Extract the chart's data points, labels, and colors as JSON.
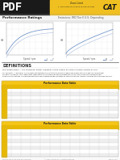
{
  "header_black_color": "#1a1a1a",
  "header_yellow_color": "#f0c020",
  "background_color": "#ffffff",
  "chart_color": "#7799cc",
  "chart_line2_color": "#aabbdd",
  "grid_color": "#dddddd",
  "table_yellow_color": "#f5c518",
  "table_yellow2_color": "#e8b800",
  "table_row_alt": "#eeeeee",
  "table_row_white": "#ffffff",
  "text_dark": "#222222",
  "text_mid": "#555555",
  "text_light": "#888888",
  "cat_bg": "#f0c020",
  "cat_text": "#1a1a1a",
  "footer_bg": "#f8f8f8"
}
